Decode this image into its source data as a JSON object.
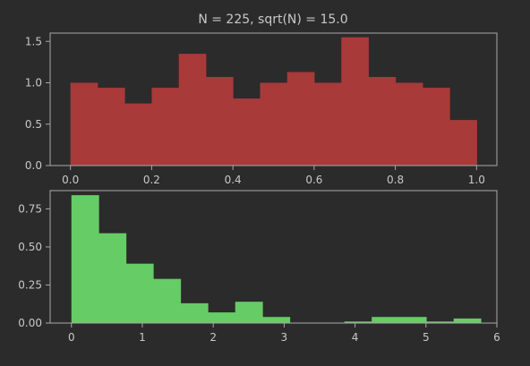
{
  "chart_data": {
    "title": "N = 225, sqrt(N) = 15.0",
    "panels": [
      {
        "type": "bar",
        "histogram": true,
        "color": "#a83a3a",
        "xlim": [
          -0.05,
          1.05
        ],
        "ylim": [
          0,
          1.6
        ],
        "x_ticks": [
          0.0,
          0.2,
          0.4,
          0.6,
          0.8,
          1.0
        ],
        "x_tick_labels": [
          "0.0",
          "0.2",
          "0.4",
          "0.6",
          "0.8",
          "1.0"
        ],
        "y_ticks": [
          0.0,
          0.5,
          1.0,
          1.5
        ],
        "y_tick_labels": [
          "0.0",
          "0.5",
          "1.0",
          "1.5"
        ],
        "bin_start": 0.0,
        "bin_width": 0.0667,
        "values": [
          1.0,
          0.94,
          0.75,
          0.94,
          1.35,
          1.07,
          0.81,
          1.0,
          1.13,
          1.0,
          1.55,
          1.07,
          1.0,
          0.94,
          0.55
        ],
        "xlabel": "",
        "ylabel": ""
      },
      {
        "type": "bar",
        "histogram": true,
        "color": "#66cc66",
        "xlim": [
          -0.3,
          6.0
        ],
        "ylim": [
          0,
          0.87
        ],
        "x_ticks": [
          0,
          1,
          2,
          3,
          4,
          5,
          6
        ],
        "x_tick_labels": [
          "0",
          "1",
          "2",
          "3",
          "4",
          "5",
          "6"
        ],
        "y_ticks": [
          0.0,
          0.25,
          0.5,
          0.75
        ],
        "y_tick_labels": [
          "0.00",
          "0.25",
          "0.50",
          "0.75"
        ],
        "bin_start": 0.0,
        "bin_width": 0.385,
        "values": [
          0.84,
          0.59,
          0.39,
          0.29,
          0.13,
          0.07,
          0.14,
          0.04,
          0.0,
          0.0,
          0.01,
          0.04,
          0.04,
          0.01,
          0.03
        ],
        "xlabel": "",
        "ylabel": ""
      }
    ]
  }
}
